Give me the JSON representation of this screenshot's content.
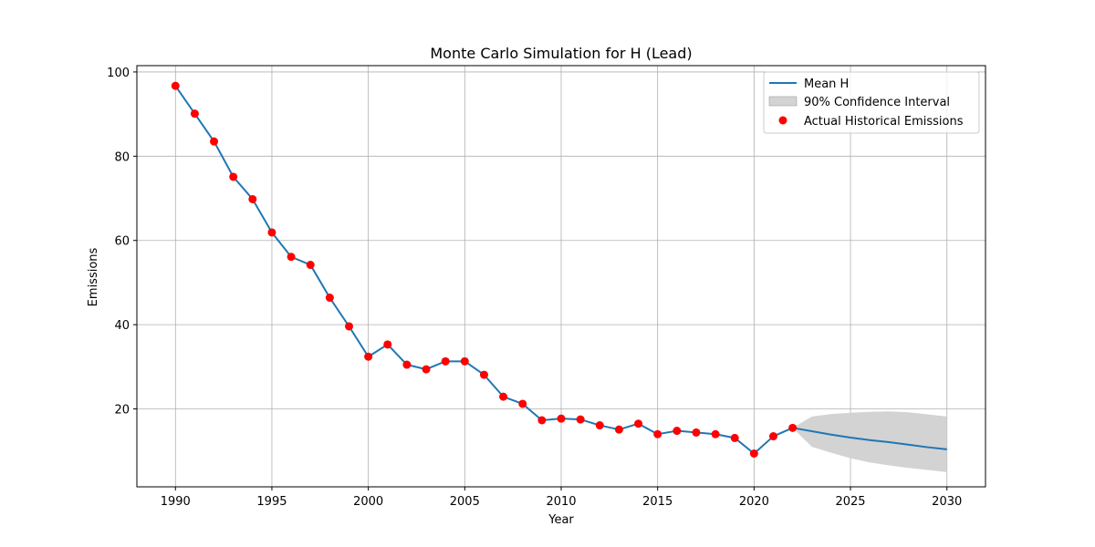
{
  "chart_data": {
    "type": "line",
    "title": "Monte Carlo Simulation for H (Lead)",
    "xlabel": "Year",
    "ylabel": "Emissions",
    "xlim": [
      1988,
      2032
    ],
    "ylim": [
      1.5,
      101.5
    ],
    "x_ticks": [
      1990,
      1995,
      2000,
      2005,
      2010,
      2015,
      2020,
      2025,
      2030
    ],
    "y_ticks": [
      20,
      40,
      60,
      80,
      100
    ],
    "grid": true,
    "legend_placement": "top-right",
    "colors": {
      "mean_line": "#1f77b4",
      "points": "#ff0000",
      "band": "#d3d3d3",
      "grid": "#b0b0b0"
    },
    "series": [
      {
        "name": "Mean H",
        "type": "line",
        "x": [
          1990,
          1991,
          1992,
          1993,
          1994,
          1995,
          1996,
          1997,
          1998,
          1999,
          2000,
          2001,
          2002,
          2003,
          2004,
          2005,
          2006,
          2007,
          2008,
          2009,
          2010,
          2011,
          2012,
          2013,
          2014,
          2015,
          2016,
          2017,
          2018,
          2019,
          2020,
          2021,
          2022,
          2023,
          2024,
          2025,
          2026,
          2027,
          2028,
          2029,
          2030
        ],
        "y": [
          96.7,
          90.1,
          83.5,
          75.1,
          69.8,
          61.9,
          56.1,
          54.2,
          46.4,
          39.6,
          32.4,
          35.3,
          30.5,
          29.4,
          31.3,
          31.3,
          28.1,
          22.9,
          21.2,
          17.3,
          17.7,
          17.5,
          16.1,
          15.1,
          16.5,
          14.0,
          14.8,
          14.4,
          14.0,
          13.1,
          9.4,
          13.5,
          15.5,
          14.7,
          13.9,
          13.2,
          12.6,
          12.1,
          11.5,
          10.9,
          10.4
        ]
      },
      {
        "name": "90% Confidence Interval",
        "type": "band",
        "x": [
          2022,
          2023,
          2024,
          2025,
          2026,
          2027,
          2028,
          2029,
          2030
        ],
        "lower": [
          15.5,
          11.0,
          9.6,
          8.3,
          7.3,
          6.6,
          6.0,
          5.5,
          5.0
        ],
        "upper": [
          15.5,
          18.2,
          18.8,
          19.1,
          19.3,
          19.4,
          19.2,
          18.7,
          18.2
        ]
      },
      {
        "name": "Actual Historical Emissions",
        "type": "scatter",
        "x": [
          1990,
          1991,
          1992,
          1993,
          1994,
          1995,
          1996,
          1997,
          1998,
          1999,
          2000,
          2001,
          2002,
          2003,
          2004,
          2005,
          2006,
          2007,
          2008,
          2009,
          2010,
          2011,
          2012,
          2013,
          2014,
          2015,
          2016,
          2017,
          2018,
          2019,
          2020,
          2021,
          2022
        ],
        "y": [
          96.7,
          90.1,
          83.5,
          75.1,
          69.8,
          61.9,
          56.1,
          54.2,
          46.4,
          39.6,
          32.4,
          35.3,
          30.5,
          29.4,
          31.3,
          31.3,
          28.1,
          22.9,
          21.2,
          17.3,
          17.7,
          17.5,
          16.1,
          15.1,
          16.5,
          14.0,
          14.8,
          14.4,
          14.0,
          13.1,
          9.4,
          13.5,
          15.5
        ]
      }
    ]
  }
}
